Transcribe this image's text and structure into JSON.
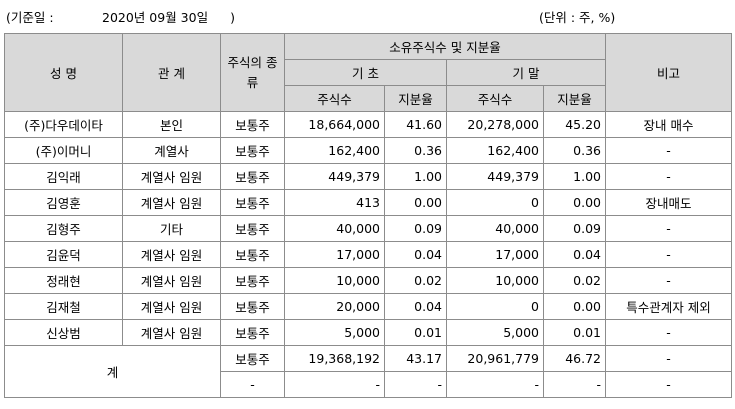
{
  "basis": {
    "label": "(기준일 :",
    "date": "2020년 09월 30일",
    "close": ")"
  },
  "unit": "(단위 : 주, %)",
  "headers": {
    "name": "성 명",
    "relation": "관 계",
    "stock_type": "주식의 종류",
    "ownership": "소유주식수 및 지분율",
    "begin": "기 초",
    "end": "기 말",
    "shares": "주식수",
    "ratio": "지분율",
    "note": "비고"
  },
  "rows": [
    {
      "name": "(주)다우데이타",
      "relation": "본인",
      "type": "보통주",
      "begin_shares": "18,664,000",
      "begin_ratio": "41.60",
      "end_shares": "20,278,000",
      "end_ratio": "45.20",
      "note": "장내 매수"
    },
    {
      "name": "(주)이머니",
      "relation": "계열사",
      "type": "보통주",
      "begin_shares": "162,400",
      "begin_ratio": "0.36",
      "end_shares": "162,400",
      "end_ratio": "0.36",
      "note": "-"
    },
    {
      "name": "김익래",
      "relation": "계열사 임원",
      "type": "보통주",
      "begin_shares": "449,379",
      "begin_ratio": "1.00",
      "end_shares": "449,379",
      "end_ratio": "1.00",
      "note": "-"
    },
    {
      "name": "김영훈",
      "relation": "계열사 임원",
      "type": "보통주",
      "begin_shares": "413",
      "begin_ratio": "0.00",
      "end_shares": "0",
      "end_ratio": "0.00",
      "note": "장내매도"
    },
    {
      "name": "김형주",
      "relation": "기타",
      "type": "보통주",
      "begin_shares": "40,000",
      "begin_ratio": "0.09",
      "end_shares": "40,000",
      "end_ratio": "0.09",
      "note": "-"
    },
    {
      "name": "김윤덕",
      "relation": "계열사 임원",
      "type": "보통주",
      "begin_shares": "17,000",
      "begin_ratio": "0.04",
      "end_shares": "17,000",
      "end_ratio": "0.04",
      "note": "-"
    },
    {
      "name": "정래현",
      "relation": "계열사 임원",
      "type": "보통주",
      "begin_shares": "10,000",
      "begin_ratio": "0.02",
      "end_shares": "10,000",
      "end_ratio": "0.02",
      "note": "-"
    },
    {
      "name": "김재철",
      "relation": "계열사 임원",
      "type": "보통주",
      "begin_shares": "20,000",
      "begin_ratio": "0.04",
      "end_shares": "0",
      "end_ratio": "0.00",
      "note": "특수관계자 제외"
    },
    {
      "name": "신상범",
      "relation": "계열사 임원",
      "type": "보통주",
      "begin_shares": "5,000",
      "begin_ratio": "0.01",
      "end_shares": "5,000",
      "end_ratio": "0.01",
      "note": "-"
    }
  ],
  "total": {
    "label": "계",
    "rows": [
      {
        "type": "보통주",
        "begin_shares": "19,368,192",
        "begin_ratio": "43.17",
        "end_shares": "20,961,779",
        "end_ratio": "46.72",
        "note": "-"
      },
      {
        "type": "-",
        "begin_shares": "-",
        "begin_ratio": "-",
        "end_shares": "-",
        "end_ratio": "-",
        "note": "-"
      }
    ]
  }
}
